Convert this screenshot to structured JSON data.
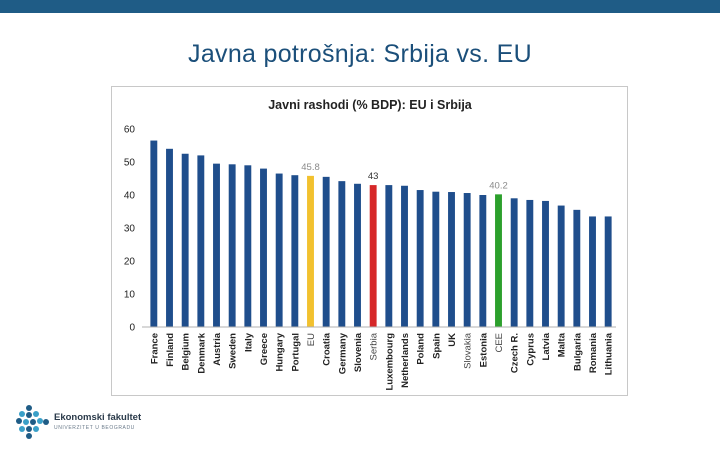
{
  "slide": {
    "title": "Javna potrošnja: Srbija vs. EU"
  },
  "colors": {
    "top_bar": "#1f5c86",
    "bar_default": "#1f4e8c",
    "bar_eu": "#f2c12e",
    "bar_serbia": "#d62728",
    "bar_cee": "#2ca02c"
  },
  "chart_data": {
    "type": "bar",
    "title": "Javni rashodi (% BDP): EU i Srbija",
    "xlabel": "",
    "ylabel": "",
    "ylim": [
      0,
      60
    ],
    "yticks": [
      0,
      10,
      20,
      30,
      40,
      50,
      60
    ],
    "grid": false,
    "categories": [
      "France",
      "Finland",
      "Belgium",
      "Denmark",
      "Austria",
      "Sweden",
      "Italy",
      "Greece",
      "Hungary",
      "Portugal",
      "EU",
      "Croatia",
      "Germany",
      "Slovenia",
      "Serbia",
      "Luxembourg",
      "Netherlands",
      "Poland",
      "Spain",
      "UK",
      "Slovakia",
      "Estonia",
      "CEE",
      "Czech R.",
      "Cyprus",
      "Latvia",
      "Malta",
      "Bulgaria",
      "Romania",
      "Lithuania"
    ],
    "values": [
      56.5,
      54,
      52.5,
      52,
      49.5,
      49.3,
      49,
      48,
      46.5,
      46,
      45.8,
      45.5,
      44.2,
      43.4,
      43,
      43,
      42.8,
      41.5,
      41,
      40.9,
      40.6,
      40,
      40.2,
      39,
      38.5,
      38.2,
      36.8,
      35.5,
      33.5,
      33.5
    ],
    "highlights": {
      "EU": "bar_eu",
      "Serbia": "bar_serbia",
      "CEE": "bar_cee"
    },
    "data_labels": [
      {
        "category": "EU",
        "text": "45.8",
        "color": "#8a8a8a"
      },
      {
        "category": "Serbia",
        "text": "43",
        "color": "#333333"
      },
      {
        "category": "CEE",
        "text": "40.2",
        "color": "#8a8a8a"
      }
    ]
  },
  "footer": {
    "logo_name": "Ekonomski fakultet",
    "logo_sub": "UNIVERZITET U BEOGRADU"
  }
}
